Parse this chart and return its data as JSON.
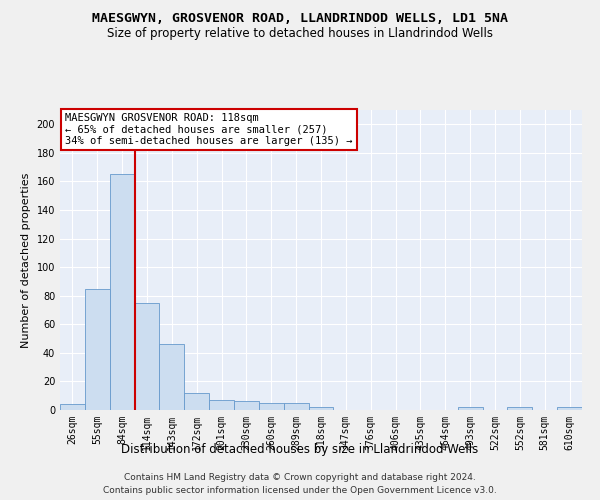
{
  "title": "MAESGWYN, GROSVENOR ROAD, LLANDRINDOD WELLS, LD1 5NA",
  "subtitle": "Size of property relative to detached houses in Llandrindod Wells",
  "xlabel": "Distribution of detached houses by size in Llandrindod Wells",
  "ylabel": "Number of detached properties",
  "footer_line1": "Contains HM Land Registry data © Crown copyright and database right 2024.",
  "footer_line2": "Contains public sector information licensed under the Open Government Licence v3.0.",
  "bin_labels": [
    "26sqm",
    "55sqm",
    "84sqm",
    "114sqm",
    "143sqm",
    "172sqm",
    "201sqm",
    "230sqm",
    "260sqm",
    "289sqm",
    "318sqm",
    "347sqm",
    "376sqm",
    "406sqm",
    "435sqm",
    "464sqm",
    "493sqm",
    "522sqm",
    "552sqm",
    "581sqm",
    "610sqm"
  ],
  "bar_heights": [
    4,
    85,
    165,
    75,
    46,
    12,
    7,
    6,
    5,
    5,
    2,
    0,
    0,
    0,
    0,
    0,
    2,
    0,
    2,
    0,
    2
  ],
  "bar_color": "#ccddf0",
  "bar_edge_color": "#6699cc",
  "red_line_x": 3.0,
  "red_line_color": "#cc0000",
  "annotation_text": "MAESGWYN GROSVENOR ROAD: 118sqm\n← 65% of detached houses are smaller (257)\n34% of semi-detached houses are larger (135) →",
  "annotation_box_color": "#ffffff",
  "annotation_box_edge": "#cc0000",
  "ylim": [
    0,
    210
  ],
  "yticks": [
    0,
    20,
    40,
    60,
    80,
    100,
    120,
    140,
    160,
    180,
    200
  ],
  "background_color": "#e8eef8",
  "grid_color": "#ffffff",
  "fig_background": "#f0f0f0",
  "title_fontsize": 9.5,
  "subtitle_fontsize": 8.5,
  "ylabel_fontsize": 8,
  "xlabel_fontsize": 8.5,
  "tick_fontsize": 7,
  "footer_fontsize": 6.5,
  "annotation_fontsize": 7.5
}
